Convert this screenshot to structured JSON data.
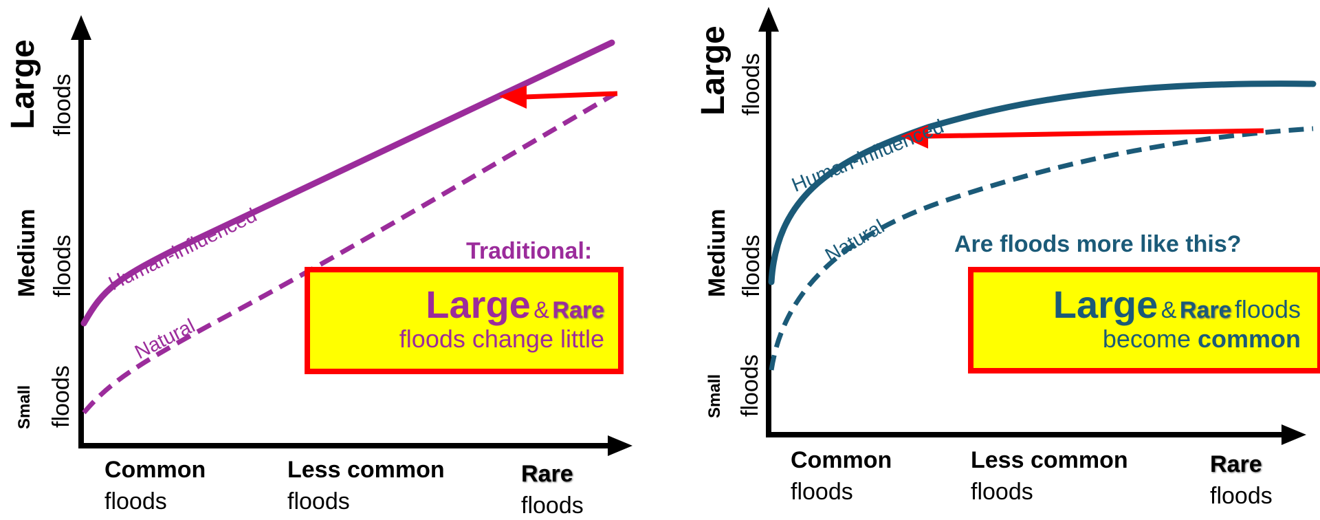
{
  "colors": {
    "traditional": "#9b2c9b",
    "alternative": "#1b5a78",
    "arrow": "#ff0000",
    "callout_fill": "#ffff00",
    "callout_border": "#ff0000",
    "axis": "#000000"
  },
  "panels": [
    {
      "y_axis": {
        "large": "Large",
        "large_sub": "floods",
        "medium": "Medium",
        "medium_sub": "floods",
        "small": "Small",
        "small_sub": "floods"
      },
      "x_axis": {
        "common": "Common",
        "common_sub": "floods",
        "less_common": "Less common",
        "less_common_sub": "floods",
        "rare": "Rare",
        "rare_sub": "floods"
      },
      "curves": {
        "human": "Human-influenced",
        "natural": "Natural"
      },
      "heading": "Traditional:",
      "callout": {
        "big": "Large",
        "amp": "&",
        "rare": "Rare",
        "line2": "floods change little"
      }
    },
    {
      "y_axis": {
        "large": "Large",
        "large_sub": "floods",
        "medium": "Medium",
        "medium_sub": "floods",
        "small": "Small",
        "small_sub": "floods"
      },
      "x_axis": {
        "common": "Common",
        "common_sub": "floods",
        "less_common": "Less common",
        "less_common_sub": "floods",
        "rare": "Rare",
        "rare_sub": "floods"
      },
      "curves": {
        "human": "Human-influenced",
        "natural": "Natural"
      },
      "heading": "Are floods more like this?",
      "callout": {
        "big": "Large",
        "amp": "&",
        "rare": "Rare",
        "tail": "floods",
        "line2_pre": "become",
        "line2_bold": "common"
      }
    }
  ]
}
